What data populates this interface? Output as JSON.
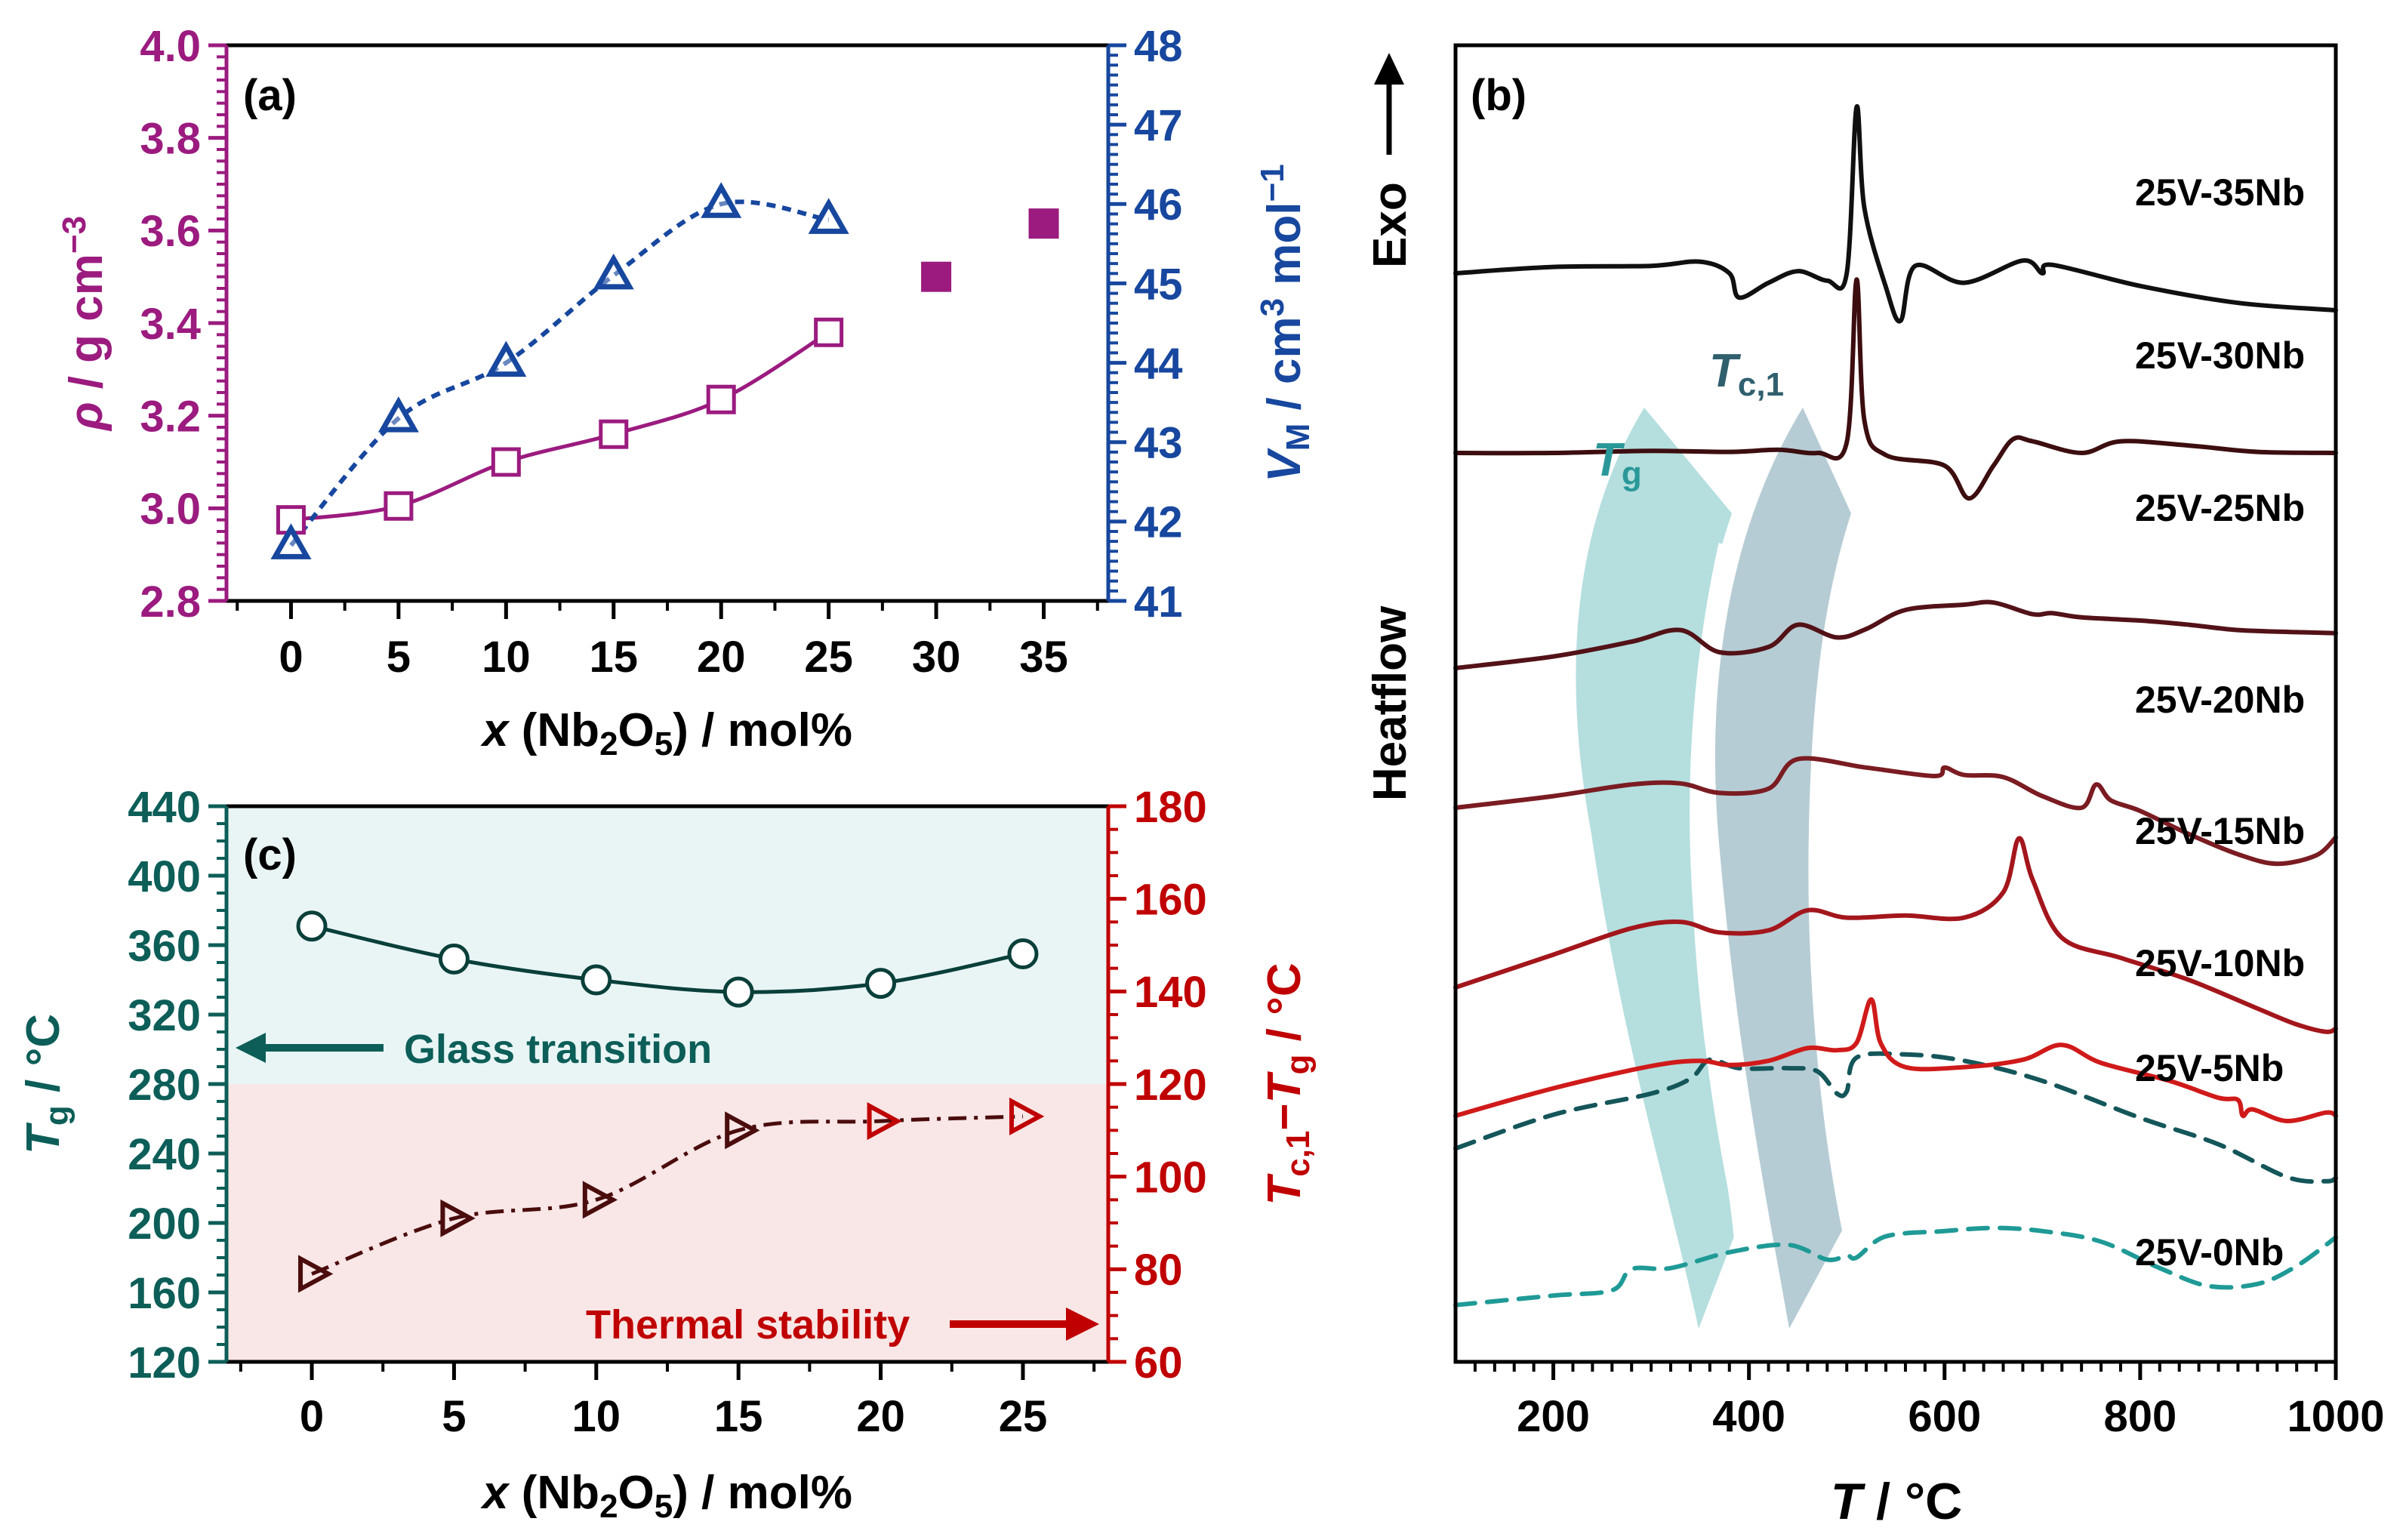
{
  "chart_data": [
    {
      "panel_label": "(a)",
      "type": "scatter",
      "xlabel": {
        "main": "x",
        "rest": " (Nb",
        "sub": "2",
        "rest2": "O",
        "sub2": "5",
        "tail": ") / mol%"
      },
      "ylabel_left": {
        "rho": "ρ",
        "rest": " / g cm",
        "sup": "−3"
      },
      "ylabel_right": {
        "v": "V",
        "sub": "M",
        "rest": " / cm",
        "sup": "3",
        "rest2": " mol",
        "sup2": "−1"
      },
      "xlim": [
        -3,
        38
      ],
      "ylim_left": [
        2.8,
        4.0
      ],
      "ylim_right": [
        41,
        48
      ],
      "x_ticks": [
        "0",
        "5",
        "10",
        "15",
        "20",
        "25",
        "30",
        "35"
      ],
      "y_left_ticks": [
        "2.8",
        "3.0",
        "3.2",
        "3.4",
        "3.6",
        "3.8",
        "4.0"
      ],
      "y_right_ticks": [
        "41",
        "42",
        "43",
        "44",
        "45",
        "46",
        "47",
        "48"
      ],
      "colors": {
        "density": "#9b1b7f",
        "molar_volume": "#17479e"
      },
      "series": [
        {
          "name": "density",
          "axis": "left",
          "marker": "open-square",
          "line": "solid",
          "x": [
            0,
            5,
            10,
            15,
            20,
            25
          ],
          "y": [
            2.975,
            3.005,
            3.1,
            3.16,
            3.235,
            3.38
          ]
        },
        {
          "name": "density (no fit)",
          "axis": "left",
          "marker": "filled-square",
          "line": "none",
          "x": [
            30,
            35
          ],
          "y": [
            3.5,
            3.615
          ]
        },
        {
          "name": "molar volume",
          "axis": "right",
          "marker": "open-triangle",
          "line": "dotted",
          "x": [
            0,
            5,
            10,
            15,
            20,
            25
          ],
          "y": [
            41.7,
            43.3,
            44.0,
            45.1,
            46.0,
            45.8
          ]
        }
      ]
    },
    {
      "panel_label": "(b)",
      "type": "line",
      "xlabel": {
        "main": "T",
        "tail": " / °C"
      },
      "ylabel": "Heatflow",
      "exo_label": "Exo",
      "exo_arrow": "⟶",
      "xlim": [
        100,
        1000
      ],
      "x_ticks": [
        "200",
        "400",
        "600",
        "800",
        "1000"
      ],
      "band_labels": {
        "tg": "T",
        "tg_sub": "g",
        "tc": "T",
        "tc_sub": "c,1"
      },
      "band_colors": {
        "tg": "#a8d8d8",
        "tc": "#a9c3cc"
      },
      "series": [
        {
          "name": "25V-35Nb",
          "color": "#1f9a96",
          "dashed": true,
          "points": [
            [
              100,
              0.56
            ],
            [
              200,
              0.74
            ],
            [
              260,
              0.84
            ],
            [
              280,
              1.24
            ],
            [
              320,
              1.26
            ],
            [
              380,
              1.56
            ],
            [
              440,
              1.7
            ],
            [
              480,
              1.42
            ],
            [
              500,
              1.5
            ],
            [
              510,
              1.46
            ],
            [
              540,
              1.86
            ],
            [
              600,
              1.96
            ],
            [
              650,
              2.02
            ],
            [
              700,
              1.96
            ],
            [
              760,
              1.76
            ],
            [
              820,
              1.26
            ],
            [
              870,
              0.92
            ],
            [
              920,
              0.96
            ],
            [
              960,
              1.3
            ],
            [
              1000,
              1.84
            ]
          ]
        },
        {
          "name": "25V-30Nb",
          "color": "#14565a",
          "dashed": true,
          "points": [
            [
              100,
              0.78
            ],
            [
              200,
              1.42
            ],
            [
              300,
              1.82
            ],
            [
              340,
              2.1
            ],
            [
              360,
              2.46
            ],
            [
              390,
              2.3
            ],
            [
              440,
              2.3
            ],
            [
              470,
              2.24
            ],
            [
              490,
              1.82
            ],
            [
              500,
              1.86
            ],
            [
              510,
              2.5
            ],
            [
              560,
              2.56
            ],
            [
              620,
              2.44
            ],
            [
              700,
              2.06
            ],
            [
              800,
              1.36
            ],
            [
              880,
              0.86
            ],
            [
              950,
              0.24
            ],
            [
              990,
              0.16
            ],
            [
              1000,
              0.22
            ]
          ]
        },
        {
          "name": "25V-25Nb",
          "color": "#d01a1a",
          "dashed": false,
          "points": [
            [
              100,
              0.0
            ],
            [
              200,
              0.52
            ],
            [
              300,
              0.94
            ],
            [
              350,
              1.04
            ],
            [
              380,
              0.96
            ],
            [
              420,
              1.04
            ],
            [
              460,
              1.28
            ],
            [
              490,
              1.24
            ],
            [
              510,
              1.38
            ],
            [
              525,
              2.2
            ],
            [
              535,
              1.36
            ],
            [
              560,
              0.92
            ],
            [
              620,
              0.92
            ],
            [
              680,
              1.06
            ],
            [
              720,
              1.34
            ],
            [
              760,
              1.0
            ],
            [
              830,
              0.66
            ],
            [
              880,
              0.34
            ],
            [
              900,
              0.3
            ],
            [
              905,
              0.0
            ],
            [
              915,
              0.12
            ],
            [
              950,
              -0.1
            ],
            [
              990,
              0.06
            ],
            [
              1000,
              0.0
            ]
          ]
        },
        {
          "name": "25V-20Nb",
          "color": "#a3161c",
          "dashed": false,
          "points": [
            [
              100,
              0.4
            ],
            [
              200,
              1.02
            ],
            [
              280,
              1.52
            ],
            [
              330,
              1.64
            ],
            [
              370,
              1.44
            ],
            [
              420,
              1.48
            ],
            [
              460,
              1.86
            ],
            [
              500,
              1.72
            ],
            [
              560,
              1.76
            ],
            [
              620,
              1.72
            ],
            [
              660,
              2.2
            ],
            [
              676,
              3.22
            ],
            [
              690,
              2.44
            ],
            [
              720,
              1.34
            ],
            [
              780,
              0.96
            ],
            [
              850,
              0.54
            ],
            [
              920,
              0.0
            ],
            [
              960,
              -0.3
            ],
            [
              990,
              -0.44
            ],
            [
              1000,
              -0.38
            ]
          ]
        },
        {
          "name": "25V-15Nb",
          "color": "#7a1c22",
          "dashed": false,
          "points": [
            [
              100,
              0.0
            ],
            [
              200,
              0.22
            ],
            [
              280,
              0.44
            ],
            [
              330,
              0.46
            ],
            [
              370,
              0.28
            ],
            [
              420,
              0.36
            ],
            [
              450,
              0.92
            ],
            [
              520,
              0.76
            ],
            [
              590,
              0.6
            ],
            [
              600,
              0.76
            ],
            [
              620,
              0.62
            ],
            [
              660,
              0.58
            ],
            [
              700,
              0.22
            ],
            [
              740,
              0.0
            ],
            [
              755,
              0.44
            ],
            [
              770,
              0.14
            ],
            [
              800,
              -0.06
            ],
            [
              850,
              -0.5
            ],
            [
              900,
              -0.88
            ],
            [
              940,
              -1.06
            ],
            [
              980,
              -0.9
            ],
            [
              1000,
              -0.56
            ]
          ]
        },
        {
          "name": "25V-10Nb",
          "color": "#521217",
          "dashed": false,
          "points": [
            [
              100,
              0.0
            ],
            [
              200,
              0.22
            ],
            [
              280,
              0.5
            ],
            [
              330,
              0.72
            ],
            [
              370,
              0.3
            ],
            [
              420,
              0.4
            ],
            [
              450,
              0.82
            ],
            [
              490,
              0.58
            ],
            [
              520,
              0.74
            ],
            [
              560,
              1.1
            ],
            [
              620,
              1.2
            ],
            [
              650,
              1.24
            ],
            [
              690,
              1.02
            ],
            [
              710,
              1.04
            ],
            [
              740,
              0.96
            ],
            [
              800,
              0.9
            ],
            [
              850,
              0.82
            ],
            [
              900,
              0.72
            ],
            [
              960,
              0.68
            ],
            [
              1000,
              0.66
            ]
          ]
        },
        {
          "name": "25V-5Nb",
          "color": "#3c0e10",
          "dashed": false,
          "points": [
            [
              100,
              0.0
            ],
            [
              200,
              0.0
            ],
            [
              300,
              0.04
            ],
            [
              380,
              0.02
            ],
            [
              430,
              0.06
            ],
            [
              470,
              0.0
            ],
            [
              500,
              0.2
            ],
            [
              510,
              3.28
            ],
            [
              518,
              0.62
            ],
            [
              540,
              -0.04
            ],
            [
              600,
              -0.24
            ],
            [
              625,
              -0.86
            ],
            [
              650,
              -0.24
            ],
            [
              670,
              0.26
            ],
            [
              690,
              0.22
            ],
            [
              740,
              0.0
            ],
            [
              780,
              0.22
            ],
            [
              850,
              0.14
            ],
            [
              920,
              0.02
            ],
            [
              1000,
              0.0
            ]
          ]
        },
        {
          "name": "25V-0Nb",
          "color": "#101010",
          "dashed": false,
          "points": [
            [
              100,
              0.0
            ],
            [
              200,
              0.12
            ],
            [
              300,
              0.14
            ],
            [
              350,
              0.22
            ],
            [
              380,
              0.0
            ],
            [
              390,
              -0.46
            ],
            [
              420,
              -0.18
            ],
            [
              450,
              0.04
            ],
            [
              480,
              -0.14
            ],
            [
              500,
              0.0
            ],
            [
              510,
              3.14
            ],
            [
              518,
              1.24
            ],
            [
              540,
              -0.26
            ],
            [
              555,
              -0.9
            ],
            [
              570,
              0.14
            ],
            [
              620,
              -0.18
            ],
            [
              680,
              0.24
            ],
            [
              700,
              0.0
            ],
            [
              710,
              0.16
            ],
            [
              800,
              -0.24
            ],
            [
              900,
              -0.56
            ],
            [
              1000,
              -0.7
            ]
          ]
        }
      ]
    },
    {
      "panel_label": "(c)",
      "type": "scatter",
      "xlabel": {
        "main": "x",
        "rest": " (Nb",
        "sub": "2",
        "rest2": "O",
        "sub2": "5",
        "tail": ") / mol%"
      },
      "ylabel_left": {
        "main": "T",
        "sub": "g",
        "rest": " / °C"
      },
      "ylabel_right": {
        "t1": "T",
        "sub1": "c,1",
        "dash": "−",
        "t2": "T",
        "sub2": "g",
        "rest": " / °C"
      },
      "xlim": [
        -3,
        28
      ],
      "ylim_left": [
        120,
        440
      ],
      "ylim_right": [
        60,
        180
      ],
      "x_ticks": [
        "0",
        "5",
        "10",
        "15",
        "20",
        "25"
      ],
      "y_left_ticks": [
        "120",
        "160",
        "200",
        "240",
        "280",
        "320",
        "360",
        "400",
        "440"
      ],
      "y_right_ticks": [
        "60",
        "80",
        "100",
        "120",
        "140",
        "160",
        "180"
      ],
      "region_split": 280,
      "annotations": {
        "glass": "Glass transition",
        "thermal": "Thermal stability"
      },
      "colors": {
        "tg": "#0d5e58",
        "stability": "#c00000",
        "stability_marker": "#4a0c0c",
        "glass_bg": "#e9f5f5",
        "thermal_bg": "#f9e6e6"
      },
      "series": [
        {
          "name": "Tg",
          "axis": "left",
          "marker": "open-circle",
          "line": "solid",
          "x": [
            0,
            5,
            10,
            15,
            20,
            25
          ],
          "y": [
            371,
            352,
            340,
            333,
            338,
            355
          ]
        },
        {
          "name": "Tc,1 − Tg",
          "axis": "right",
          "marker": "open-triangle-right",
          "line": "dash-dot",
          "x": [
            0,
            5,
            10,
            15,
            20,
            25
          ],
          "y": [
            79,
            91,
            95,
            110,
            112,
            113
          ]
        }
      ]
    }
  ]
}
